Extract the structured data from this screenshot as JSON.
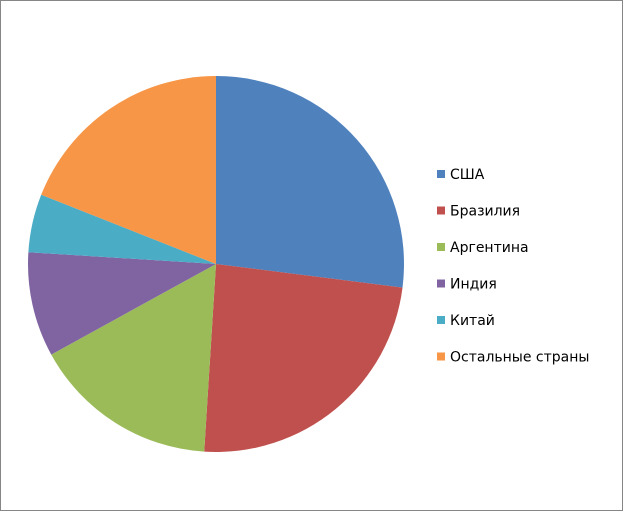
{
  "chart_data": {
    "type": "pie",
    "categories": [
      "США",
      "Бразилия",
      "Аргентина",
      "Индия",
      "Китай",
      "Остальные страны"
    ],
    "values": [
      27,
      24,
      16,
      9,
      5,
      19
    ],
    "colors": [
      "#4f81bd",
      "#c0504d",
      "#9bbb59",
      "#8064a2",
      "#4bacc6",
      "#f79646"
    ],
    "legend": "right"
  }
}
